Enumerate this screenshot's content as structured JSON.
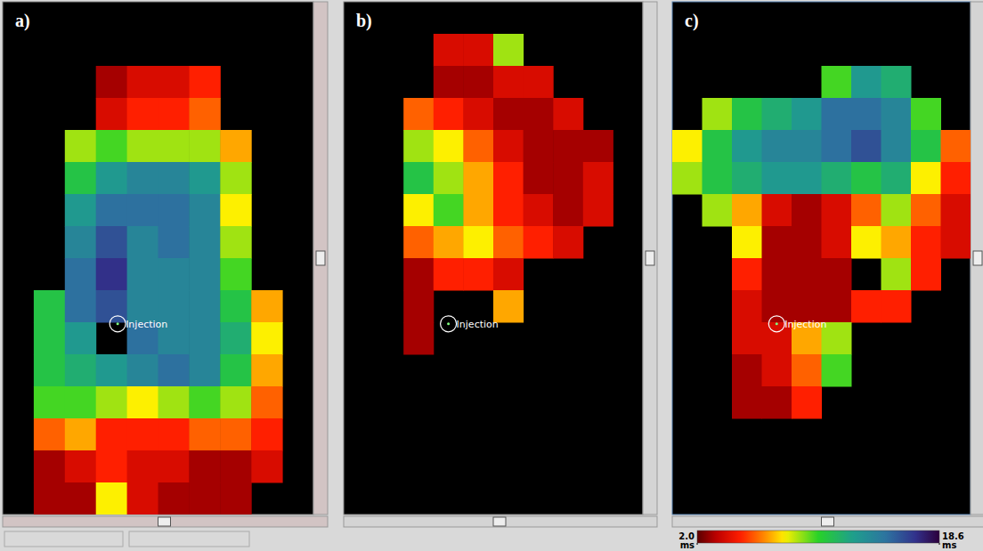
{
  "chart_data": {
    "type": "heatmap",
    "panels": [
      {
        "label": "a)",
        "annotation": {
          "text": "Injection",
          "col": 3.7,
          "row": 10.05
        },
        "cells": [
          [
            null,
            null,
            null,
            null,
            null,
            null,
            null,
            null,
            null,
            null
          ],
          [
            null,
            null,
            null,
            null,
            null,
            null,
            null,
            null,
            null,
            null
          ],
          [
            null,
            null,
            null,
            3,
            4,
            4,
            5,
            null,
            null,
            null
          ],
          [
            null,
            null,
            null,
            4,
            5,
            5,
            6,
            null,
            null,
            null
          ],
          [
            null,
            null,
            9,
            10,
            9,
            9,
            9,
            7,
            null,
            null
          ],
          [
            null,
            null,
            11,
            13,
            14,
            14,
            13,
            9,
            null,
            null
          ],
          [
            null,
            null,
            13,
            15,
            15,
            15,
            14,
            8,
            null,
            null
          ],
          [
            null,
            null,
            14,
            16,
            14,
            15,
            14,
            9,
            null,
            null
          ],
          [
            null,
            null,
            15,
            17,
            14,
            14,
            14,
            10,
            null,
            null
          ],
          [
            null,
            11,
            15,
            16,
            14,
            14,
            14,
            11,
            7,
            null
          ],
          [
            null,
            11,
            13,
            null,
            15,
            14,
            14,
            12,
            8,
            null
          ],
          [
            null,
            11,
            12,
            13,
            14,
            15,
            14,
            11,
            7,
            null
          ],
          [
            null,
            10,
            10,
            9,
            8,
            9,
            10,
            9,
            6,
            null
          ],
          [
            null,
            6,
            7,
            5,
            5,
            5,
            6,
            6,
            5,
            null
          ],
          [
            null,
            3,
            4,
            5,
            4,
            4,
            3,
            3,
            4,
            null
          ],
          [
            null,
            3,
            3,
            8,
            4,
            3,
            3,
            3,
            null,
            null
          ]
        ]
      },
      {
        "label": "b)",
        "annotation": {
          "text": "Injection",
          "col": 3.5,
          "row": 10.05
        },
        "cells": [
          [
            null,
            null,
            null,
            null,
            null,
            null,
            null,
            null,
            null,
            null
          ],
          [
            null,
            null,
            null,
            4,
            4,
            9,
            null,
            null,
            null,
            null
          ],
          [
            null,
            null,
            null,
            3,
            3,
            4,
            4,
            null,
            null,
            null
          ],
          [
            null,
            null,
            6,
            5,
            4,
            3,
            3,
            4,
            null,
            null
          ],
          [
            null,
            null,
            9,
            8,
            6,
            4,
            3,
            3,
            3,
            null
          ],
          [
            null,
            null,
            11,
            9,
            7,
            5,
            3,
            3,
            4,
            null
          ],
          [
            null,
            null,
            8,
            10,
            7,
            5,
            4,
            3,
            4,
            null
          ],
          [
            null,
            null,
            6,
            7,
            8,
            6,
            5,
            4,
            null,
            null
          ],
          [
            null,
            null,
            3,
            5,
            5,
            4,
            null,
            null,
            null,
            null
          ],
          [
            null,
            null,
            3,
            null,
            null,
            7,
            null,
            null,
            null,
            null
          ],
          [
            null,
            null,
            3,
            null,
            null,
            null,
            null,
            null,
            null,
            null
          ],
          [
            null,
            null,
            null,
            null,
            null,
            null,
            null,
            null,
            null,
            null
          ],
          [
            null,
            null,
            null,
            null,
            null,
            null,
            null,
            null,
            null,
            null
          ],
          [
            null,
            null,
            null,
            null,
            null,
            null,
            null,
            null,
            null,
            null
          ],
          [
            null,
            null,
            null,
            null,
            null,
            null,
            null,
            null,
            null,
            null
          ],
          [
            null,
            null,
            null,
            null,
            null,
            null,
            null,
            null,
            null,
            null
          ]
        ]
      },
      {
        "label": "c)",
        "annotation": {
          "text": "Injection",
          "col": 3.5,
          "row": 10.05
        },
        "cells": [
          [
            null,
            null,
            null,
            null,
            null,
            null,
            null,
            null,
            null,
            null
          ],
          [
            null,
            null,
            null,
            null,
            null,
            null,
            null,
            null,
            null,
            null
          ],
          [
            null,
            null,
            null,
            null,
            null,
            10,
            13,
            12,
            null,
            null
          ],
          [
            null,
            9,
            11,
            12,
            13,
            15,
            15,
            14,
            10,
            null
          ],
          [
            8,
            11,
            13,
            14,
            14,
            15,
            16,
            14,
            11,
            6
          ],
          [
            9,
            11,
            12,
            13,
            13,
            12,
            11,
            12,
            8,
            5
          ],
          [
            null,
            9,
            7,
            4,
            3,
            4,
            6,
            9,
            6,
            4
          ],
          [
            null,
            null,
            8,
            3,
            3,
            4,
            8,
            7,
            5,
            4
          ],
          [
            null,
            null,
            5,
            3,
            3,
            3,
            null,
            9,
            5,
            null
          ],
          [
            null,
            null,
            4,
            3,
            3,
            3,
            5,
            5,
            null,
            null
          ],
          [
            null,
            null,
            4,
            4,
            7,
            9,
            null,
            null,
            null,
            null
          ],
          [
            null,
            null,
            3,
            4,
            6,
            10,
            null,
            null,
            null,
            null
          ],
          [
            null,
            null,
            3,
            3,
            5,
            null,
            null,
            null,
            null,
            null
          ],
          [
            null,
            null,
            null,
            null,
            null,
            null,
            null,
            null,
            null,
            null
          ],
          [
            null,
            null,
            null,
            null,
            null,
            null,
            null,
            null,
            null,
            null
          ],
          [
            null,
            null,
            null,
            null,
            null,
            null,
            null,
            null,
            null,
            null
          ]
        ]
      }
    ],
    "colorbar": {
      "range": [
        2.0,
        18.6
      ],
      "ticks": [
        {
          "value": 2.0,
          "label": "2.0"
        },
        {
          "value": 18.6,
          "label": "18.6"
        }
      ],
      "unit": "ms"
    }
  }
}
